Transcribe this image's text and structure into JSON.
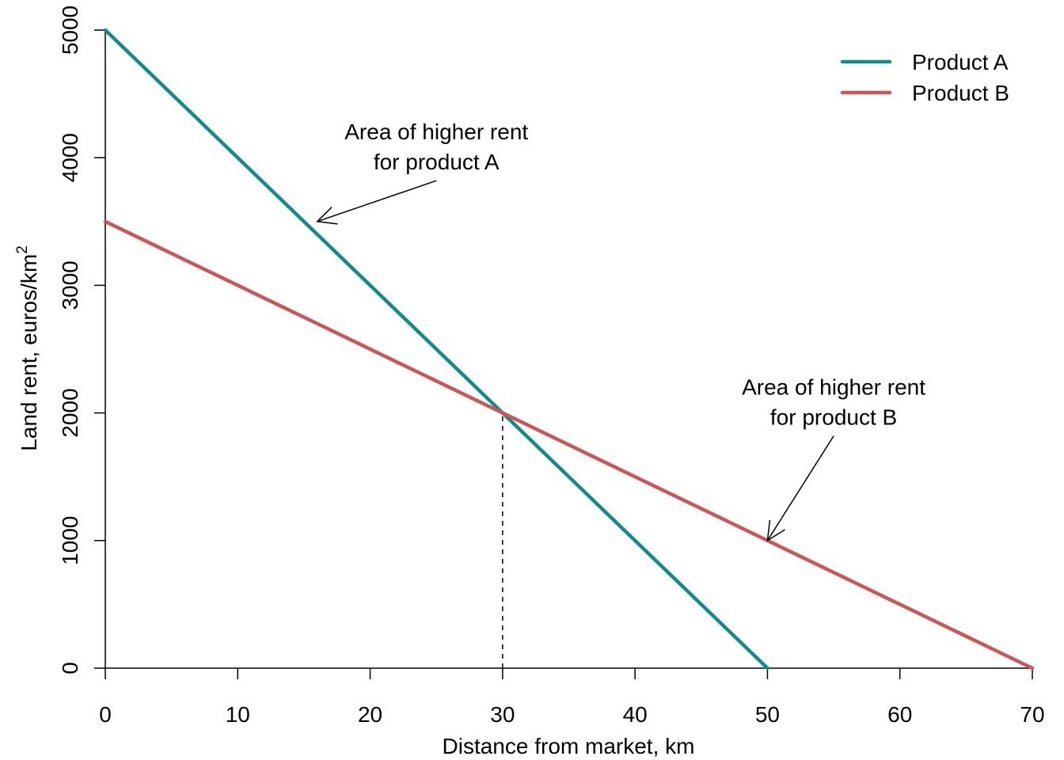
{
  "chart_data": {
    "type": "line",
    "xlabel": "Distance from market, km",
    "ylabel_main": "Land rent, euros/km",
    "ylabel_sup": "2",
    "xlim": [
      0,
      70
    ],
    "ylim": [
      0,
      5000
    ],
    "x_ticks": [
      0,
      10,
      20,
      30,
      40,
      50,
      60,
      70
    ],
    "y_ticks": [
      0,
      1000,
      2000,
      3000,
      4000,
      5000
    ],
    "grid": false,
    "legend_position": "top-right",
    "series": [
      {
        "name": "Product A",
        "color": "#108c8c",
        "x": [
          0,
          50
        ],
        "y": [
          5000,
          0
        ]
      },
      {
        "name": "Product B",
        "color": "#cd5555",
        "x": [
          0,
          70
        ],
        "y": [
          3500,
          0
        ]
      }
    ],
    "reference_line": {
      "style": "dashed",
      "x": [
        30,
        30
      ],
      "y": [
        0,
        2000
      ]
    },
    "annotations": [
      {
        "lines": [
          "Area of higher rent",
          "for product A"
        ],
        "arrow_from": [
          25,
          3820
        ],
        "arrow_to": [
          16,
          3500
        ]
      },
      {
        "lines": [
          "Area of higher rent",
          "for product B"
        ],
        "arrow_from": [
          55,
          1820
        ],
        "arrow_to": [
          50,
          1000
        ]
      }
    ]
  }
}
